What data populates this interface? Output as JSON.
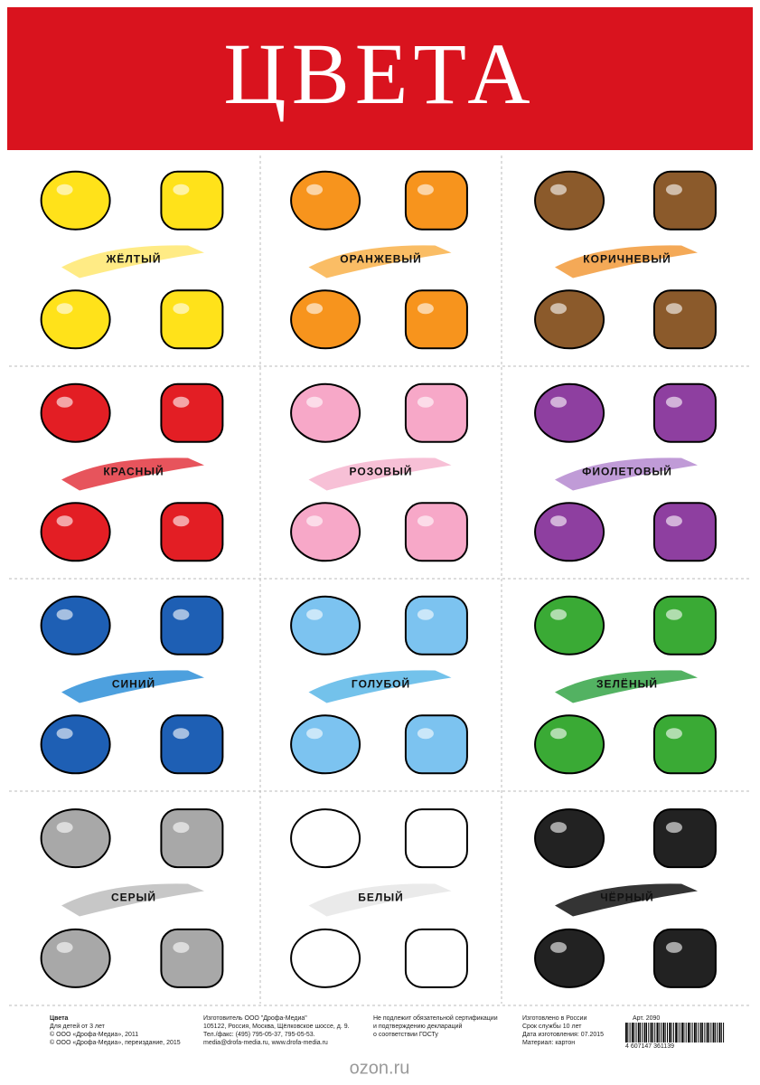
{
  "header": {
    "title": "ЦВЕТА"
  },
  "cells": [
    {
      "label": "ЖЁЛТЫЙ"
    },
    {
      "label": "ОРАНЖЕВЫЙ"
    },
    {
      "label": "КОРИЧНЕВЫЙ"
    },
    {
      "label": "КРАСНЫЙ"
    },
    {
      "label": "РОЗОВЫЙ"
    },
    {
      "label": "ФИОЛЕТОВЫЙ"
    },
    {
      "label": "СИНИЙ"
    },
    {
      "label": "ГОЛУБОЙ"
    },
    {
      "label": "ЗЕЛЁНЫЙ"
    },
    {
      "label": "СЕРЫЙ"
    },
    {
      "label": "БЕЛЫЙ"
    },
    {
      "label": "ЧЁРНЫЙ"
    }
  ],
  "footer": {
    "columns": [
      [
        "Цвета",
        "Для детей от 3 лет",
        "© ООО «Дрофа-Медиа», 2011",
        "© ООО «Дрофа-Медиа», переиздание, 2015"
      ],
      [
        "Изготовитель ООО \"Дрофа-Медиа\"",
        "105122, Россия, Москва, Щёлковское шоссе, д. 9.",
        "Тел./факс: (495) 795-05-37, 795-05-53.",
        "media@drofa-media.ru, www.drofa-media.ru"
      ],
      [
        "Не подлежит обязательной сертификации",
        "и подтверждению деклараций",
        "о соответствии ГОСТу"
      ],
      [
        "Изготовлено в России",
        "Срок службы 10 лет",
        "Дата изготовления: 07.2015",
        "Материал: картон"
      ]
    ],
    "article": "Арт. 2090",
    "barcode": "4 607147 361139"
  },
  "watermark": "ozon.ru"
}
